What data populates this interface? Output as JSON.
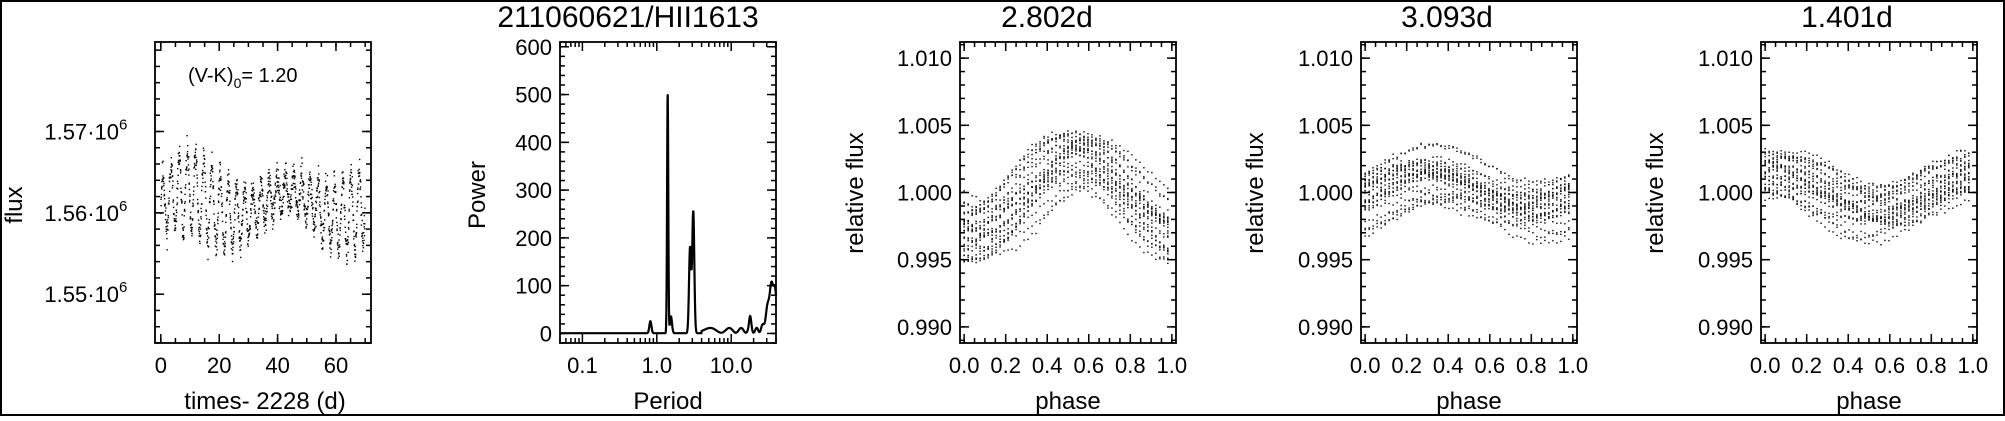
{
  "figure": {
    "border": true
  },
  "chart_data": [
    {
      "type": "scatter",
      "panel": "light-curve",
      "title": "",
      "xlabel": "times- 2228 (d)",
      "ylabel": "flux",
      "annotation": "(V-K)",
      "annotation_sub": "0",
      "annotation_value": "= 1.20",
      "xlim": [
        -2,
        72
      ],
      "ylim": [
        1544000,
        1581000
      ],
      "x_ticks": [
        0,
        20,
        40,
        60
      ],
      "x_tick_labels": [
        "0",
        "20",
        "40",
        "60"
      ],
      "y_ticks": [
        1550000,
        1560000,
        1570000
      ],
      "y_tick_mantissa": [
        "1.55",
        "1.56",
        "1.57"
      ],
      "y_tick_exp": [
        "6",
        "6",
        "6"
      ],
      "y_tick_base": "10",
      "series": [
        {
          "x_range": [
            0,
            70
          ],
          "y_mean": 1561000,
          "y_amp": 5000,
          "period": 2.802,
          "noise": 2500,
          "points": 1300
        }
      ]
    },
    {
      "type": "line",
      "panel": "periodogram",
      "title": "211060621/HII1613",
      "xlabel": "Period",
      "ylabel": "Power",
      "xscale": "log",
      "xlim": [
        0.05,
        40
      ],
      "ylim": [
        -20,
        610
      ],
      "x_ticks": [
        0.1,
        1.0,
        10.0
      ],
      "x_tick_labels": [
        "0.1",
        "1.0",
        "10.0"
      ],
      "y_ticks": [
        0,
        100,
        200,
        300,
        400,
        500,
        600
      ],
      "y_tick_labels": [
        "0",
        "100",
        "200",
        "300",
        "400",
        "500",
        "600"
      ],
      "peaks": [
        {
          "period": 0.82,
          "power": 25
        },
        {
          "period": 1.4,
          "power": 505
        },
        {
          "period": 1.55,
          "power": 35
        },
        {
          "period": 2.8,
          "power": 180
        },
        {
          "period": 3.09,
          "power": 255
        },
        {
          "period": 18.0,
          "power": 25
        },
        {
          "period": 36.0,
          "power": 100
        }
      ]
    },
    {
      "type": "scatter",
      "panel": "phased-1",
      "title": "2.802d",
      "xlabel": "phase",
      "ylabel": "relative flux",
      "xlim": [
        -0.02,
        1.02
      ],
      "ylim": [
        0.9888,
        1.0112
      ],
      "x_ticks": [
        0,
        0.2,
        0.4,
        0.6,
        0.8,
        1.0
      ],
      "x_tick_labels": [
        "0.0",
        "0.2",
        "0.4",
        "0.6",
        "0.8",
        "1.0"
      ],
      "y_ticks": [
        0.99,
        0.995,
        1.0,
        1.005,
        1.01
      ],
      "y_tick_labels": [
        "0.990",
        "0.995",
        "1.000",
        "1.005",
        "1.010"
      ],
      "series": [
        {
          "amp": 0.003,
          "center": 0.55,
          "spread": 0.0018,
          "points": 1300
        }
      ]
    },
    {
      "type": "scatter",
      "panel": "phased-2",
      "title": "3.093d",
      "xlabel": "phase",
      "ylabel": "relative flux",
      "xlim": [
        -0.02,
        1.02
      ],
      "ylim": [
        0.9888,
        1.0112
      ],
      "x_ticks": [
        0,
        0.2,
        0.4,
        0.6,
        0.8,
        1.0
      ],
      "x_tick_labels": [
        "0.0",
        "0.2",
        "0.4",
        "0.6",
        "0.8",
        "1.0"
      ],
      "y_ticks": [
        0.99,
        0.995,
        1.0,
        1.005,
        1.01
      ],
      "y_tick_labels": [
        "0.990",
        "0.995",
        "1.000",
        "1.005",
        "1.010"
      ],
      "series": [
        {
          "amp": 0.0012,
          "center": 0.3,
          "spread": 0.0024,
          "points": 1300
        }
      ]
    },
    {
      "type": "scatter",
      "panel": "phased-3",
      "title": "1.401d",
      "xlabel": "phase",
      "ylabel": "relative flux",
      "xlim": [
        -0.02,
        1.02
      ],
      "ylim": [
        0.9888,
        1.0112
      ],
      "x_ticks": [
        0,
        0.2,
        0.4,
        0.6,
        0.8,
        1.0
      ],
      "x_tick_labels": [
        "0.0",
        "0.2",
        "0.4",
        "0.6",
        "0.8",
        "1.0"
      ],
      "y_ticks": [
        0.99,
        0.995,
        1.0,
        1.005,
        1.01
      ],
      "y_tick_labels": [
        "0.990",
        "0.995",
        "1.000",
        "1.005",
        "1.010"
      ],
      "series": [
        {
          "amp": 0.0016,
          "center": 0.05,
          "spread": 0.0016,
          "points": 1300
        }
      ]
    }
  ]
}
